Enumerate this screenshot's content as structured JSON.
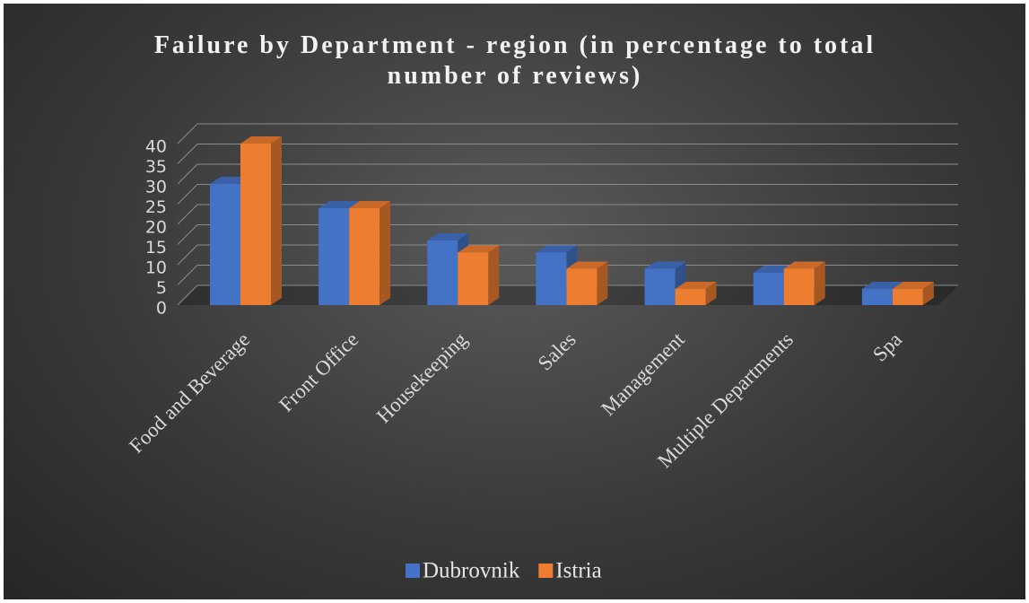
{
  "chart_data": {
    "type": "bar3d",
    "title": "Failure by Department - region (in percentage to total number of reviews)",
    "categories": [
      "Food and Beverage",
      "Front Office",
      "Housekeeping",
      "Sales",
      "Management",
      "Multiple Departments",
      "Spa"
    ],
    "series": [
      {
        "name": "Dubrovnik",
        "color": "#4472c4",
        "values": [
          30,
          24,
          16,
          13,
          9,
          8,
          4
        ]
      },
      {
        "name": "Istria",
        "color": "#ed7d31",
        "values": [
          40,
          24,
          13,
          9,
          4,
          9,
          4
        ]
      }
    ],
    "ylim": [
      0,
      40
    ],
    "yticks": [
      0,
      5,
      10,
      15,
      20,
      25,
      30,
      35,
      40
    ],
    "grid": true,
    "legend": "bottom"
  }
}
